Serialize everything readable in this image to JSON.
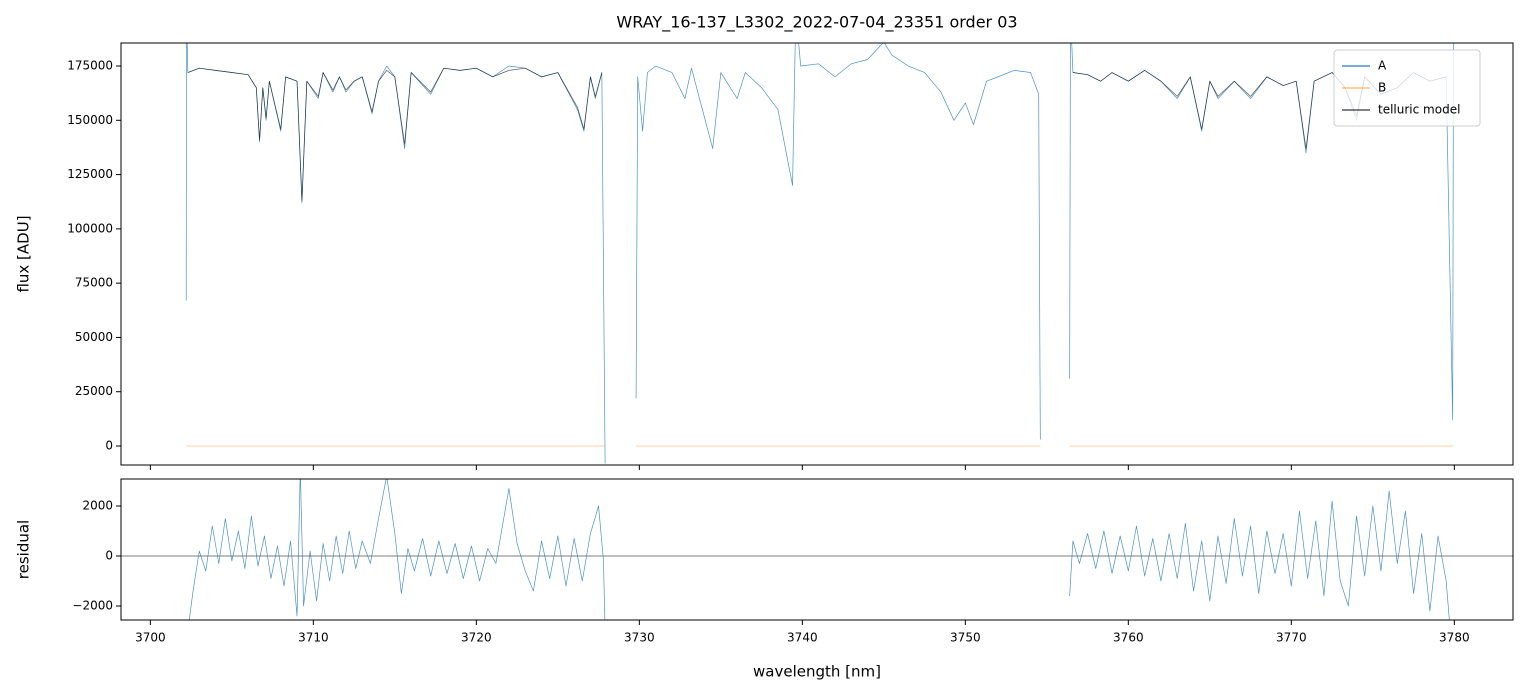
{
  "chart_data": [
    {
      "type": "line",
      "title": "WRAY_16-137_L3302_2022-07-04_23351  order 03",
      "ylabel": "flux [ADU]",
      "xlim": [
        3698.2,
        3783.6
      ],
      "ylim": [
        -8750,
        185600
      ],
      "xticks": [
        3700,
        3710,
        3720,
        3730,
        3740,
        3750,
        3760,
        3770,
        3780
      ],
      "yticks": [
        0,
        25000,
        50000,
        75000,
        100000,
        125000,
        150000,
        175000
      ],
      "legend": "upper right",
      "series": [
        {
          "name": "A",
          "color": "#1f77b4",
          "alpha": 0.8,
          "x": [
            3702.2,
            3702.22,
            3702.3,
            3703,
            3704,
            3705,
            3706,
            3706.5,
            3706.7,
            3706.9,
            3707.1,
            3707.3,
            3708.0,
            3708.3,
            3709.0,
            3709.3,
            3709.6,
            3710.3,
            3710.6,
            3711.2,
            3711.6,
            3712.0,
            3712.5,
            3713.0,
            3713.6,
            3714.0,
            3714.5,
            3715.0,
            3715.6,
            3716.0,
            3717.2,
            3718,
            3719,
            3720,
            3721,
            3722,
            3723,
            3724,
            3725,
            3726.2,
            3726.6,
            3727.0,
            3727.3,
            3727.7,
            3727.9,
            3728.5,
            3729.8,
            3729.9,
            3730.2,
            3730.5,
            3731,
            3732,
            3732.8,
            3733.2,
            3734.5,
            3735,
            3736,
            3736.5,
            3737.5,
            3738.5,
            3739.4,
            3739.6,
            3739.9,
            3741,
            3742,
            3743,
            3744,
            3745,
            3745.5,
            3746.5,
            3747.5,
            3748.5,
            3749.3,
            3750,
            3750.5,
            3751.3,
            3752,
            3753,
            3754,
            3754.5,
            3754.6,
            3755.5,
            3756.4,
            3756.45,
            3756.6,
            3757.5,
            3758.3,
            3759,
            3760,
            3761,
            3762,
            3763,
            3763.8,
            3764.5,
            3765,
            3765.5,
            3766.5,
            3767.5,
            3768.5,
            3769.5,
            3770.3,
            3770.9,
            3771.4,
            3772.5,
            3773.3,
            3774,
            3774.5,
            3775.5,
            3776.5,
            3777.5,
            3778.5,
            3779.5,
            3779.9,
            3779.95
          ],
          "values": [
            67000,
            200000,
            172000,
            174000,
            173000,
            172000,
            171000,
            165000,
            140000,
            165000,
            150000,
            168000,
            145000,
            170000,
            168000,
            112000,
            168000,
            160000,
            172000,
            163000,
            170000,
            163000,
            168000,
            170000,
            153000,
            168000,
            175000,
            170000,
            137000,
            172000,
            162000,
            174000,
            173000,
            174000,
            170000,
            175000,
            174000,
            170000,
            172000,
            155000,
            145000,
            170000,
            160000,
            172000,
            -8000,
            null,
            22000,
            170000,
            145000,
            172000,
            175000,
            172000,
            160000,
            174000,
            137000,
            172000,
            160000,
            172000,
            165000,
            155000,
            120000,
            200000,
            175000,
            176000,
            170000,
            176000,
            178000,
            186000,
            180000,
            175000,
            172000,
            163000,
            150000,
            158000,
            148000,
            168000,
            170000,
            173000,
            172000,
            162000,
            3000,
            null,
            31000,
            200000,
            172000,
            171000,
            168000,
            172000,
            168000,
            173000,
            168000,
            160000,
            170000,
            145000,
            168000,
            160000,
            168000,
            160000,
            170000,
            166000,
            168000,
            135000,
            168000,
            172000,
            165000,
            150000,
            170000,
            162000,
            165000,
            172000,
            168000,
            170000,
            12000,
            200000
          ]
        },
        {
          "name": "B",
          "color": "#ff7f0e",
          "alpha": 0.5,
          "x": [
            3702.2,
            3727.9,
            3728.5,
            3729.8,
            3754.6,
            3755.5,
            3756.4,
            3779.9
          ],
          "values": [
            0,
            0,
            null,
            0,
            0,
            null,
            0,
            0
          ]
        },
        {
          "name": "telluric model",
          "color": "#000000",
          "alpha": 0.65,
          "x": [
            3702.3,
            3703,
            3704,
            3705,
            3706,
            3706.5,
            3706.7,
            3706.9,
            3707.1,
            3707.3,
            3708.0,
            3708.3,
            3709.0,
            3709.3,
            3709.6,
            3710.3,
            3710.6,
            3711.2,
            3711.6,
            3712.0,
            3712.5,
            3713.0,
            3713.6,
            3714.0,
            3714.5,
            3715.0,
            3715.6,
            3716.0,
            3717.2,
            3718,
            3719,
            3720,
            3721,
            3722,
            3723,
            3724,
            3725,
            3726.2,
            3726.6,
            3727.0,
            3727.3,
            3727.7,
            3740,
            3756.6,
            3757.5,
            3758.3,
            3759,
            3760,
            3761,
            3762,
            3763,
            3763.8,
            3764.5,
            3765,
            3765.5,
            3766.5,
            3767.5,
            3768.5,
            3769.5,
            3770.3,
            3770.9,
            3771.4,
            3772.5,
            3773.3,
            3774,
            3774.5,
            3775.5,
            3776.5,
            3777.5,
            3778.5,
            3779.5
          ],
          "values": [
            172000,
            174000,
            173000,
            172000,
            171000,
            165000,
            141000,
            165000,
            151000,
            168000,
            146000,
            170000,
            168000,
            113000,
            168000,
            161000,
            172000,
            164000,
            170000,
            164000,
            168000,
            170000,
            154000,
            168000,
            173000,
            170000,
            139000,
            172000,
            163000,
            174000,
            173000,
            174000,
            170000,
            173000,
            174000,
            170000,
            172000,
            156000,
            146000,
            170000,
            161000,
            172000,
            null,
            172000,
            171000,
            168000,
            172000,
            168000,
            173000,
            168000,
            161000,
            170000,
            146000,
            168000,
            161000,
            168000,
            161000,
            170000,
            166000,
            168000,
            137000,
            168000,
            172000,
            165000,
            152000,
            170000,
            162000,
            165000,
            172000,
            168000,
            170000
          ]
        }
      ]
    },
    {
      "type": "line",
      "xlabel": "wavelength [nm]",
      "ylabel": "residual",
      "xlim": [
        3698.2,
        3783.6
      ],
      "ylim": [
        -2560,
        3080
      ],
      "xticks": [
        3700,
        3710,
        3720,
        3730,
        3740,
        3750,
        3760,
        3770,
        3780
      ],
      "yticks": [
        {
          "value": -2000,
          "label": "−2000"
        },
        0,
        2000
      ],
      "reference_line": 0,
      "color": "#1f77b4",
      "alpha": 0.8,
      "x": [
        3702.3,
        3702.6,
        3703,
        3703.4,
        3703.8,
        3704.2,
        3704.6,
        3705,
        3705.4,
        3705.8,
        3706.2,
        3706.6,
        3707,
        3707.4,
        3707.8,
        3708.2,
        3708.6,
        3709,
        3709.2,
        3709.4,
        3709.8,
        3710.2,
        3710.6,
        3711,
        3711.4,
        3711.8,
        3712.2,
        3712.6,
        3713,
        3713.5,
        3714,
        3714.5,
        3715,
        3715.4,
        3715.8,
        3716.2,
        3716.7,
        3717.2,
        3717.7,
        3718.2,
        3718.7,
        3719.2,
        3719.7,
        3720.2,
        3720.7,
        3721.2,
        3722,
        3722.5,
        3723,
        3723.5,
        3724,
        3724.5,
        3725,
        3725.5,
        3726,
        3726.5,
        3727,
        3727.5,
        3727.8,
        3727.9,
        3740,
        3756.4,
        3756.6,
        3757,
        3757.5,
        3758,
        3758.5,
        3759,
        3759.5,
        3760,
        3760.5,
        3761,
        3761.5,
        3762,
        3762.5,
        3763,
        3763.5,
        3764,
        3764.5,
        3765,
        3765.5,
        3766,
        3766.5,
        3767,
        3767.5,
        3768,
        3768.5,
        3769,
        3769.5,
        3770,
        3770.5,
        3771,
        3771.5,
        3772,
        3772.5,
        3773,
        3773.5,
        3774,
        3774.5,
        3775,
        3775.5,
        3776,
        3776.5,
        3777,
        3777.5,
        3778,
        3778.5,
        3779,
        3779.5,
        3779.7
      ],
      "values": [
        -3000,
        -1500,
        200,
        -600,
        1200,
        -300,
        1500,
        -200,
        1000,
        -500,
        1600,
        -400,
        800,
        -900,
        400,
        -1200,
        600,
        -2400,
        3500,
        -2000,
        200,
        -1800,
        500,
        -1000,
        800,
        -700,
        1000,
        -500,
        600,
        -300,
        1500,
        3200,
        900,
        -1500,
        300,
        -600,
        700,
        -800,
        600,
        -700,
        500,
        -900,
        400,
        -1000,
        300,
        -300,
        2700,
        500,
        -600,
        -1400,
        600,
        -900,
        800,
        -1200,
        700,
        -1000,
        900,
        2000,
        -200,
        -3000,
        null,
        -1600,
        600,
        -300,
        900,
        -500,
        1000,
        -700,
        800,
        -600,
        1200,
        -800,
        700,
        -1000,
        900,
        -900,
        1300,
        -1400,
        600,
        -1800,
        800,
        -1100,
        1500,
        -800,
        1200,
        -1500,
        1000,
        -700,
        900,
        -1200,
        1800,
        -900,
        1400,
        -1600,
        2200,
        -1000,
        -2000,
        1600,
        -800,
        2000,
        -600,
        2600,
        -300,
        1800,
        -1500,
        900,
        -2200,
        800,
        -1000,
        -2600
      ]
    }
  ]
}
